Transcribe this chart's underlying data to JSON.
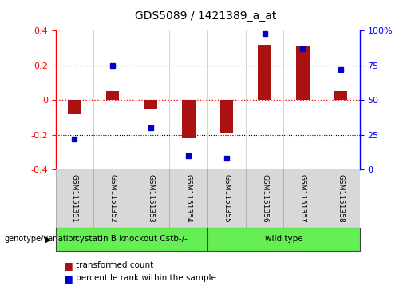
{
  "title": "GDS5089 / 1421389_a_at",
  "samples": [
    "GSM1151351",
    "GSM1151352",
    "GSM1151353",
    "GSM1151354",
    "GSM1151355",
    "GSM1151356",
    "GSM1151357",
    "GSM1151358"
  ],
  "transformed_count": [
    -0.08,
    0.05,
    -0.05,
    -0.22,
    -0.19,
    0.32,
    0.31,
    0.05
  ],
  "percentile_rank": [
    22,
    75,
    30,
    10,
    8,
    98,
    87,
    72
  ],
  "ylim_left": [
    -0.4,
    0.4
  ],
  "ylim_right": [
    0,
    100
  ],
  "yticks_left": [
    -0.4,
    -0.2,
    0.0,
    0.2,
    0.4
  ],
  "yticks_right": [
    0,
    25,
    50,
    75,
    100
  ],
  "bar_color": "#aa1111",
  "dot_color": "#0000cc",
  "background_color": "#ffffff",
  "group_label_left": "cystatin B knockout Cstb-/-",
  "group_label_right": "wild type",
  "group_split": 4,
  "group_color": "#66ee55",
  "sample_bg_color": "#d8d8d8",
  "legend_bar_label": "transformed count",
  "legend_dot_label": "percentile rank within the sample",
  "genotype_label": "genotype/variation"
}
